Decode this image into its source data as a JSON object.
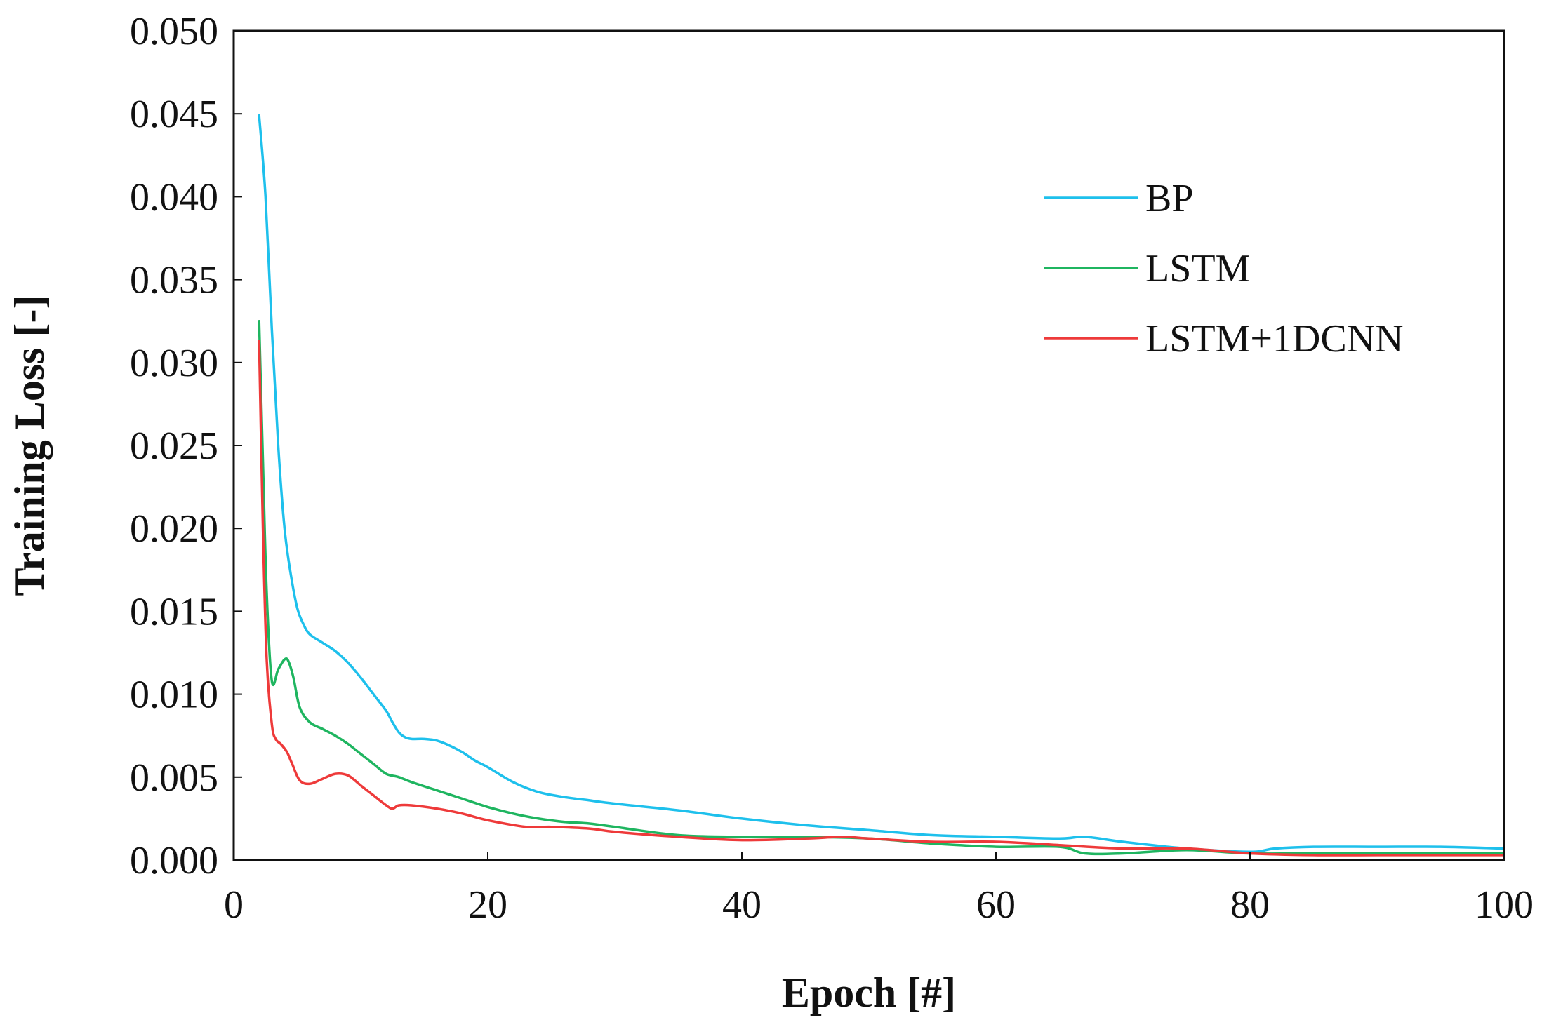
{
  "chart_data": {
    "type": "line",
    "title": "",
    "xlabel": "Epoch [#]",
    "ylabel": "Training Loss [-]",
    "xlim": [
      0,
      100
    ],
    "ylim": [
      0,
      0.05
    ],
    "xticks": [
      0,
      20,
      40,
      60,
      80,
      100
    ],
    "xtick_labels": [
      "0",
      "20",
      "40",
      "60",
      "80",
      "100"
    ],
    "yticks": [
      0,
      0.005,
      0.01,
      0.015,
      0.02,
      0.025,
      0.03,
      0.035,
      0.04,
      0.045,
      0.05
    ],
    "ytick_labels": [
      "0.000",
      "0.005",
      "0.010",
      "0.015",
      "0.020",
      "0.025",
      "0.030",
      "0.035",
      "0.040",
      "0.045",
      "0.050"
    ],
    "grid": false,
    "legend_position": "top-right",
    "series": [
      {
        "name": "BP",
        "color": "#1ec0ec",
        "x": [
          2,
          2.5,
          3,
          3.5,
          4,
          4.5,
          5,
          5.5,
          6,
          7,
          8,
          9,
          10,
          11,
          12,
          12.5,
          13,
          13.5,
          14,
          15,
          16,
          17,
          18,
          19,
          20,
          22,
          24,
          26,
          28,
          30,
          35,
          40,
          45,
          50,
          55,
          60,
          65,
          67,
          70,
          75,
          80,
          82,
          85,
          90,
          95,
          100
        ],
        "y": [
          0.0449,
          0.04,
          0.032,
          0.025,
          0.02,
          0.0172,
          0.0152,
          0.0142,
          0.0136,
          0.0131,
          0.0126,
          0.0119,
          0.011,
          0.01,
          0.009,
          0.0083,
          0.0077,
          0.0074,
          0.0073,
          0.0073,
          0.0072,
          0.0069,
          0.0065,
          0.006,
          0.0056,
          0.0047,
          0.0041,
          0.0038,
          0.0036,
          0.0034,
          0.003,
          0.0025,
          0.0021,
          0.0018,
          0.0015,
          0.0014,
          0.0013,
          0.0014,
          0.0011,
          0.0007,
          0.0005,
          0.0007,
          0.0008,
          0.0008,
          0.0008,
          0.0007
        ]
      },
      {
        "name": "LSTM",
        "color": "#1fb560",
        "x": [
          2,
          2.3,
          2.6,
          3,
          3.5,
          4,
          4.3,
          4.7,
          5.2,
          6,
          7,
          8,
          9,
          10,
          11,
          12,
          13,
          14,
          16,
          18,
          20,
          22,
          24,
          26,
          28,
          30,
          35,
          40,
          45,
          50,
          55,
          60,
          65,
          67,
          70,
          75,
          80,
          85,
          90,
          95,
          100
        ],
        "y": [
          0.0325,
          0.024,
          0.016,
          0.0108,
          0.0115,
          0.0121,
          0.012,
          0.011,
          0.0092,
          0.0083,
          0.0079,
          0.0075,
          0.007,
          0.0064,
          0.0058,
          0.0052,
          0.005,
          0.0047,
          0.0042,
          0.0037,
          0.0032,
          0.0028,
          0.0025,
          0.0023,
          0.0022,
          0.002,
          0.0015,
          0.0014,
          0.0014,
          0.0013,
          0.001,
          0.0008,
          0.0008,
          0.0004,
          0.0004,
          0.0006,
          0.0004,
          0.0004,
          0.0004,
          0.0004,
          0.0004
        ]
      },
      {
        "name": "LSTM+1DCNN",
        "color": "#ee3a3a",
        "x": [
          2,
          2.3,
          2.6,
          3,
          3.3,
          3.7,
          4.2,
          4.6,
          5.2,
          6,
          7,
          8,
          9,
          10,
          11,
          12,
          12.5,
          13,
          14,
          16,
          18,
          20,
          23,
          25,
          28,
          30,
          35,
          40,
          45,
          48,
          50,
          55,
          60,
          65,
          70,
          75,
          80,
          85,
          90,
          95,
          100
        ],
        "y": [
          0.0313,
          0.02,
          0.012,
          0.0082,
          0.0073,
          0.007,
          0.0065,
          0.0058,
          0.0048,
          0.0046,
          0.0049,
          0.0052,
          0.0051,
          0.0045,
          0.0039,
          0.0033,
          0.0031,
          0.0033,
          0.0033,
          0.0031,
          0.0028,
          0.0024,
          0.002,
          0.002,
          0.0019,
          0.0017,
          0.0014,
          0.0012,
          0.0013,
          0.0014,
          0.0013,
          0.0011,
          0.0011,
          0.0009,
          0.0007,
          0.0007,
          0.0004,
          0.0003,
          0.0003,
          0.0003,
          0.0003
        ]
      }
    ]
  }
}
